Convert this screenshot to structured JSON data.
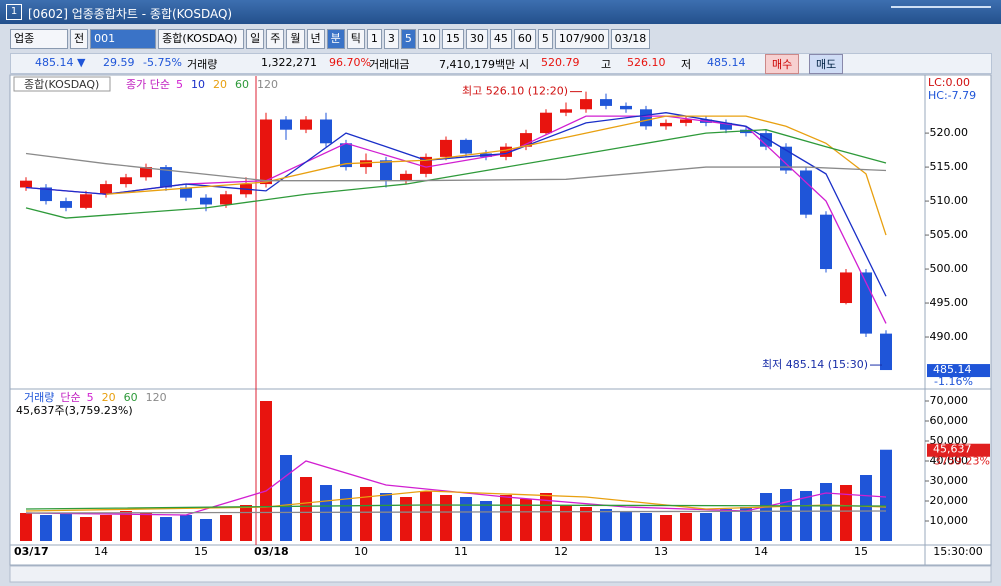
{
  "window": {
    "number": "1",
    "title": "[0602] 업종종합차트 - 종합(KOSDAQ)"
  },
  "toolbar": {
    "market": "업종",
    "scope": "전",
    "code": "001",
    "name": "종합(KOSDAQ)",
    "periods": [
      "일",
      "주",
      "월",
      "년",
      "분",
      "틱"
    ],
    "minutes": [
      "1",
      "3",
      "5",
      "10",
      "15",
      "30",
      "45",
      "60"
    ],
    "interval": "5",
    "count": "107/900",
    "date": "03/18"
  },
  "quote": {
    "price": "485.14 ▼",
    "change": "29.59",
    "rate": "-5.75%",
    "volume_label": "거래량",
    "volume": "1,322,271",
    "volume_rate": "96.70%",
    "amount_label": "거래대금",
    "amount": "7,410,179백만",
    "open_label": "시",
    "open": "520.79",
    "high_label": "고",
    "high": "526.10",
    "low_label": "저",
    "low": "485.14",
    "buy": "매수",
    "sell": "매도"
  },
  "chart_data": [
    {
      "type": "candlestick",
      "title": "종합(KOSDAQ)",
      "ma_label": "종가 단순",
      "categories": [
        "03/17",
        null,
        null,
        null,
        "14",
        null,
        null,
        null,
        null,
        "15",
        null,
        null,
        "03/18",
        null,
        null,
        null,
        null,
        "10",
        null,
        null,
        null,
        null,
        "11",
        null,
        null,
        null,
        null,
        "12",
        null,
        null,
        null,
        null,
        "13",
        null,
        null,
        null,
        null,
        "14",
        null,
        null,
        null,
        null,
        "15",
        null
      ],
      "open": [
        512,
        512,
        510,
        509,
        511,
        512.5,
        513.5,
        515,
        512,
        510.5,
        509.5,
        511,
        512.5,
        522,
        520.5,
        522,
        518.5,
        515,
        516,
        513,
        514,
        516.5,
        519,
        517,
        516.5,
        518,
        520,
        523,
        523.5,
        525,
        524,
        523.5,
        521,
        521.5,
        522,
        521.5,
        520.5,
        520,
        518,
        514.5,
        508,
        495,
        499.5,
        490.5
      ],
      "high": [
        513.5,
        512.5,
        510.5,
        511.5,
        513,
        514,
        515.5,
        515.3,
        512.5,
        511,
        511.5,
        513.5,
        523,
        522.5,
        522.5,
        523,
        519,
        517,
        516.5,
        514.5,
        517,
        519.5,
        519.2,
        517.5,
        518.5,
        520.5,
        523.5,
        524.5,
        526.1,
        525.8,
        524.5,
        524,
        522,
        522.5,
        522.5,
        522,
        521,
        520.5,
        518.5,
        515,
        508.5,
        500,
        500,
        491
      ],
      "low": [
        511.5,
        509.5,
        508.5,
        508.8,
        510.5,
        512,
        513,
        511.5,
        510,
        508.5,
        509,
        510.5,
        512,
        519,
        520,
        518,
        514.5,
        514,
        512,
        512.5,
        513.5,
        516,
        516.5,
        516,
        516,
        517.5,
        519.8,
        522.5,
        523,
        523.5,
        523,
        520.5,
        520.5,
        521,
        521,
        520,
        519.5,
        517.5,
        514,
        507.5,
        499.5,
        494.8,
        490,
        485.14
      ],
      "close": [
        513,
        510,
        509,
        511,
        512.5,
        513.5,
        515,
        512,
        510.5,
        509.5,
        511,
        512.5,
        522,
        520.5,
        522,
        518.5,
        515,
        516,
        513,
        514,
        516.5,
        519,
        517,
        516.5,
        518,
        520,
        523,
        523.5,
        525,
        524,
        523.5,
        521,
        521.5,
        522,
        521.5,
        520.5,
        520,
        518,
        514.5,
        508,
        500,
        499.5,
        490.5,
        485.14
      ],
      "up_color": "#e8140f",
      "down_color": "#1f55d8",
      "series": [
        {
          "name": "5",
          "color": "#d11fd1",
          "x": [
            0,
            4,
            8,
            12,
            16,
            20,
            24,
            28,
            32,
            36,
            40,
            43
          ],
          "values": [
            512,
            511,
            512.5,
            513,
            518.5,
            515,
            517,
            522.5,
            522.5,
            521,
            510,
            492
          ]
        },
        {
          "name": "10",
          "color": "#1a2fc8",
          "x": [
            0,
            4,
            8,
            12,
            16,
            20,
            24,
            28,
            32,
            36,
            40,
            43
          ],
          "values": [
            512,
            511,
            512.5,
            511.5,
            520,
            516,
            517,
            521.5,
            523,
            521,
            514,
            496
          ]
        },
        {
          "name": "20",
          "color": "#e8a010",
          "x": [
            4,
            12,
            16,
            20,
            24,
            28,
            32,
            36,
            38,
            40,
            42,
            43
          ],
          "values": [
            511,
            512.8,
            515.5,
            516,
            517.5,
            520,
            522.5,
            522.5,
            521,
            518.5,
            514,
            505
          ]
        },
        {
          "name": "60",
          "color": "#2e9a3a",
          "x": [
            0,
            2,
            9,
            14,
            19,
            24,
            29,
            34,
            37,
            40,
            43
          ],
          "values": [
            509,
            507.5,
            509,
            511,
            512.5,
            515,
            517.5,
            520,
            520.5,
            518,
            515.6
          ]
        },
        {
          "name": "120",
          "color": "#8a8a8a",
          "x": [
            0,
            4,
            12,
            19,
            27,
            34,
            39,
            43
          ],
          "values": [
            517,
            515.5,
            513,
            513,
            513.2,
            515,
            515,
            514.5
          ]
        }
      ],
      "ylim": [
        482.5,
        528.4
      ],
      "yticks": [
        {
          "value": 490,
          "label": "490.00"
        },
        {
          "value": 495,
          "label": "495.00"
        },
        {
          "value": 500,
          "label": "500.00"
        },
        {
          "value": 505,
          "label": "505.00"
        },
        {
          "value": 510,
          "label": "510.00"
        },
        {
          "value": 515,
          "label": "515.00"
        },
        {
          "value": 520,
          "label": "520.00"
        }
      ],
      "high_note": "최고 526.10 (12:20)",
      "low_note": "최저 485.14 (15:30)",
      "lc": "LC:0.00",
      "hc": "HC:-7.79",
      "last_label": "485.14",
      "last_rate": "-1.16%",
      "time_label": "15:30:00"
    },
    {
      "type": "bar",
      "title": "거래량",
      "ma_label": "단순",
      "header": "45,637주(3,759.23%)",
      "values": [
        14000,
        13000,
        14000,
        12000,
        13000,
        15000,
        14000,
        12000,
        13000,
        11000,
        13000,
        18000,
        70000,
        43000,
        32000,
        28000,
        26000,
        27000,
        24000,
        22000,
        25000,
        23000,
        22000,
        20000,
        23000,
        21000,
        24000,
        18000,
        17000,
        16000,
        15000,
        14000,
        13000,
        14000,
        14000,
        16000,
        17000,
        24000,
        26000,
        25000,
        29000,
        28000,
        33000,
        45637
      ],
      "series": [
        {
          "name": "5",
          "color": "#d11fd1",
          "x": [
            0,
            8,
            12,
            14,
            18,
            24,
            30,
            36,
            40,
            43
          ],
          "values": [
            14000,
            13000,
            25000,
            40000,
            28000,
            22000,
            17000,
            15000,
            24000,
            22000
          ]
        },
        {
          "name": "20",
          "color": "#e8a010",
          "x": [
            0,
            12,
            20,
            28,
            34,
            40,
            43
          ],
          "values": [
            15000,
            17000,
            25000,
            22000,
            16000,
            18000,
            17000
          ]
        },
        {
          "name": "60",
          "color": "#2e9a3a",
          "x": [
            0,
            20,
            43
          ],
          "values": [
            16000,
            18000,
            17500
          ]
        },
        {
          "name": "120",
          "color": "#8a8a8a",
          "x": [
            0,
            43
          ],
          "values": [
            14000,
            15000
          ]
        }
      ],
      "ylim": [
        0,
        76000
      ],
      "yticks": [
        {
          "value": 10000,
          "label": "10,000"
        },
        {
          "value": 20000,
          "label": "20,000"
        },
        {
          "value": 30000,
          "label": "30,000"
        },
        {
          "value": 40000,
          "label": "40,000"
        },
        {
          "value": 50000,
          "label": "50,000"
        },
        {
          "value": 60000,
          "label": "60,000"
        },
        {
          "value": 70000,
          "label": "70,000"
        }
      ],
      "last_label": "45,637",
      "last_rate": "3759.23%"
    }
  ]
}
